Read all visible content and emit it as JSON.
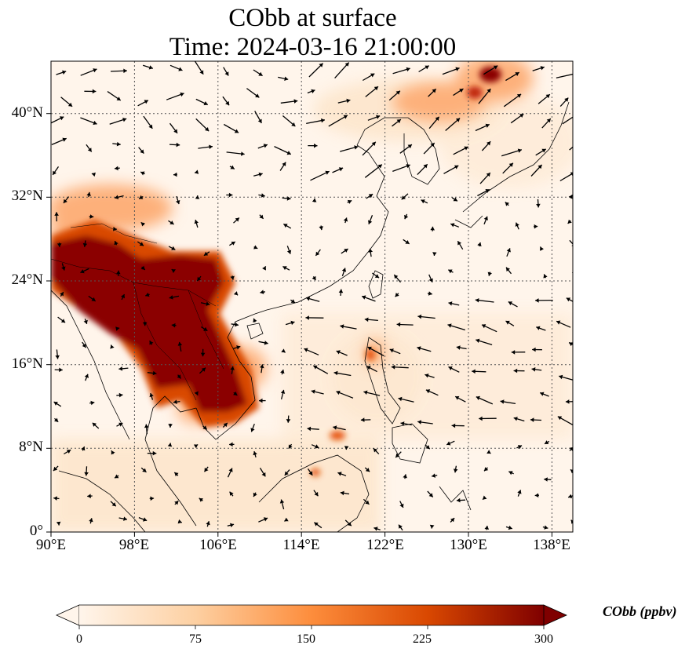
{
  "title": {
    "line1": "CObb at surface",
    "line2": "Time: 2024-03-16 21:00:00"
  },
  "map": {
    "lon_range": [
      90,
      140
    ],
    "lat_range": [
      0,
      45
    ],
    "lon_ticks": [
      "90°E",
      "98°E",
      "106°E",
      "114°E",
      "122°E",
      "130°E",
      "138°E"
    ],
    "lat_ticks": [
      "0°",
      "8°N",
      "16°N",
      "24°N",
      "32°N",
      "40°N"
    ],
    "grid": "dotted",
    "colormap": [
      "#fff5eb",
      "#fdd0a2",
      "#fd8d3c",
      "#d94801",
      "#7f0000"
    ],
    "field": "COBB at surface",
    "vectors": "wind arrows (black)"
  },
  "colorbar": {
    "label": "CObb (ppbv)",
    "ticks": [
      "0",
      "75",
      "150",
      "225",
      "300"
    ],
    "range": [
      0,
      300
    ],
    "extend": "both"
  }
}
